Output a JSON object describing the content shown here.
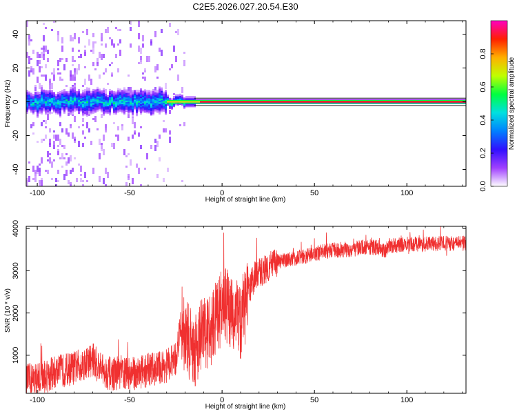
{
  "chart_data": [
    {
      "type": "heatmap",
      "title": "C2E5.2026.027.20.54.E30",
      "xlabel": "Height of straight line (km)",
      "ylabel": "Frequency (Hz)",
      "xlim": [
        -106,
        132
      ],
      "ylim": [
        -50,
        48
      ],
      "xticks": [
        -100,
        -50,
        0,
        50,
        100
      ],
      "yticks": [
        -40,
        -20,
        0,
        20,
        40
      ],
      "colorbar": {
        "label": "Normalized spectral amplitude",
        "range": [
          0,
          1
        ],
        "ticks": [
          "0.0",
          "0.2",
          "0.4",
          "0.6",
          "0.8"
        ],
        "colors": [
          "#ffffff",
          "#a040ff",
          "#3010ff",
          "#0080ff",
          "#00e0e0",
          "#00ff40",
          "#c0ff00",
          "#ffb000",
          "#ff2000",
          "#ff00c0"
        ]
      },
      "ridge": {
        "frequency_hz": 0,
        "description": "dominant spectral line near 0 Hz, scattered below -20 km, stable above"
      }
    },
    {
      "type": "line",
      "xlabel": "Height of straight line (km)",
      "ylabel": "SNR (10 * v/v)",
      "xlim": [
        -106,
        132
      ],
      "ylim": [
        100,
        4050
      ],
      "xticks": [
        -100,
        -50,
        0,
        50,
        100
      ],
      "yticks": [
        1000,
        2000,
        3000,
        4000
      ],
      "series": [
        {
          "name": "SNR",
          "color": "#f03030",
          "x": [
            -106,
            -100,
            -95,
            -90,
            -85,
            -80,
            -75,
            -70,
            -65,
            -60,
            -55,
            -50,
            -45,
            -40,
            -35,
            -30,
            -25,
            -22,
            -20,
            -18,
            -15,
            -12,
            -10,
            -8,
            -5,
            -3,
            0,
            3,
            5,
            8,
            10,
            12,
            15,
            18,
            20,
            22,
            25,
            28,
            30,
            35,
            40,
            45,
            50,
            55,
            60,
            65,
            70,
            75,
            80,
            85,
            88,
            90,
            95,
            100,
            105,
            110,
            115,
            120,
            125,
            132
          ],
          "values": [
            400,
            450,
            500,
            600,
            650,
            700,
            800,
            900,
            650,
            550,
            600,
            550,
            600,
            650,
            700,
            750,
            900,
            1800,
            1500,
            1300,
            1100,
            1400,
            1600,
            1500,
            1700,
            2000,
            2100,
            2200,
            1900,
            2100,
            1700,
            2300,
            2600,
            2900,
            2950,
            3000,
            3100,
            3150,
            3200,
            3250,
            3300,
            3350,
            3400,
            3450,
            3480,
            3500,
            3500,
            3550,
            3550,
            3550,
            3450,
            3600,
            3600,
            3620,
            3630,
            3620,
            3640,
            3650,
            3640,
            3650
          ],
          "noise_envelope": [
            {
              "x_range": [
                -106,
                -22
              ],
              "spread": 400
            },
            {
              "x_range": [
                -22,
                14
              ],
              "spread": 900
            },
            {
              "x_range": [
                14,
                30
              ],
              "spread": 350
            },
            {
              "x_range": [
                30,
                132
              ],
              "spread": 180
            }
          ]
        }
      ]
    }
  ]
}
